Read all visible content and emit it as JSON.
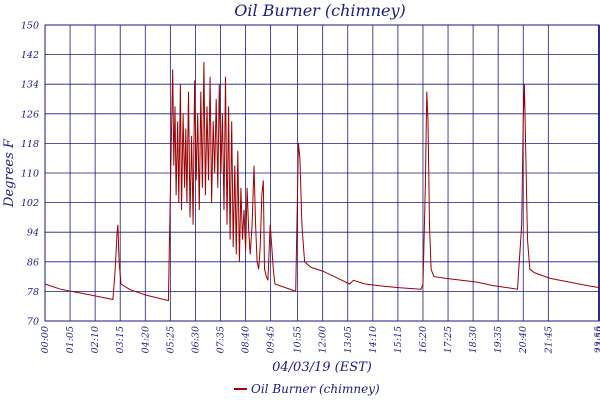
{
  "chart_data": {
    "type": "line",
    "title": "Oil Burner (chimney)",
    "xlabel": "04/03/19 (EST)",
    "ylabel": "Degrees F",
    "ylim": [
      70,
      150
    ],
    "yticks": [
      70,
      78,
      86,
      94,
      102,
      110,
      118,
      126,
      134,
      142,
      150
    ],
    "xlim_minutes": [
      0,
      1439
    ],
    "xticks": [
      "00:00",
      "01:05",
      "02:10",
      "03:15",
      "04:20",
      "05:25",
      "06:30",
      "07:35",
      "08:40",
      "09:45",
      "10:55",
      "12:00",
      "13:05",
      "14:10",
      "15:15",
      "16:20",
      "17:25",
      "18:30",
      "19:35",
      "20:40",
      "21:45",
      "23:55",
      "23:59"
    ],
    "xtick_minutes": [
      0,
      65,
      130,
      195,
      260,
      325,
      390,
      455,
      520,
      585,
      655,
      720,
      785,
      850,
      915,
      980,
      1045,
      1110,
      1175,
      1240,
      1305,
      1435,
      1439
    ],
    "grid": true,
    "legend_position": "bottom-center",
    "colors": {
      "series": "#a00000",
      "grid": "#1a1a80",
      "text": "#1a1a80"
    },
    "series": [
      {
        "name": "Oil Burner (chimney)",
        "points": [
          [
            0,
            80
          ],
          [
            40,
            78.6
          ],
          [
            80,
            77.8
          ],
          [
            120,
            77
          ],
          [
            176,
            75.8
          ],
          [
            182,
            84
          ],
          [
            187,
            94
          ],
          [
            189,
            96
          ],
          [
            192,
            86
          ],
          [
            197,
            80
          ],
          [
            220,
            78.5
          ],
          [
            262,
            77
          ],
          [
            320,
            75.5
          ],
          [
            326,
            110
          ],
          [
            331,
            138
          ],
          [
            334,
            112
          ],
          [
            337,
            128
          ],
          [
            340,
            104
          ],
          [
            344,
            124
          ],
          [
            347,
            102
          ],
          [
            351,
            134
          ],
          [
            354,
            100
          ],
          [
            358,
            126
          ],
          [
            362,
            106
          ],
          [
            365,
            122
          ],
          [
            368,
            102
          ],
          [
            372,
            132
          ],
          [
            376,
            98
          ],
          [
            380,
            120
          ],
          [
            384,
            96
          ],
          [
            388,
            135
          ],
          [
            392,
            108
          ],
          [
            396,
            126
          ],
          [
            400,
            100
          ],
          [
            404,
            132
          ],
          [
            408,
            106
          ],
          [
            412,
            140
          ],
          [
            416,
            104
          ],
          [
            420,
            128
          ],
          [
            424,
            108
          ],
          [
            428,
            136
          ],
          [
            432,
            102
          ],
          [
            436,
            124
          ],
          [
            440,
            110
          ],
          [
            444,
            130
          ],
          [
            448,
            106
          ],
          [
            452,
            134
          ],
          [
            456,
            110
          ],
          [
            460,
            126
          ],
          [
            464,
            100
          ],
          [
            468,
            136
          ],
          [
            472,
            96
          ],
          [
            476,
            128
          ],
          [
            480,
            92
          ],
          [
            484,
            124
          ],
          [
            488,
            90
          ],
          [
            492,
            112
          ],
          [
            496,
            88
          ],
          [
            500,
            116
          ],
          [
            504,
            86
          ],
          [
            508,
            106
          ],
          [
            512,
            92
          ],
          [
            516,
            100
          ],
          [
            520,
            89
          ],
          [
            524,
            106
          ],
          [
            528,
            95
          ],
          [
            532,
            88
          ],
          [
            537,
            96
          ],
          [
            542,
            112
          ],
          [
            546,
            96
          ],
          [
            550,
            86
          ],
          [
            554,
            84
          ],
          [
            558,
            90
          ],
          [
            562,
            104
          ],
          [
            566,
            108
          ],
          [
            569,
            84
          ],
          [
            574,
            82
          ],
          [
            578,
            81
          ],
          [
            584,
            96
          ],
          [
            588,
            90
          ],
          [
            592,
            84
          ],
          [
            596,
            80
          ],
          [
            640,
            78.4
          ],
          [
            650,
            78
          ],
          [
            657,
            118
          ],
          [
            661,
            114
          ],
          [
            666,
            96
          ],
          [
            673,
            86
          ],
          [
            690,
            84.5
          ],
          [
            720,
            83.5
          ],
          [
            760,
            81.5
          ],
          [
            790,
            80
          ],
          [
            800,
            81
          ],
          [
            830,
            80
          ],
          [
            870,
            79.5
          ],
          [
            920,
            79
          ],
          [
            975,
            78.6
          ],
          [
            980,
            80
          ],
          [
            986,
            106
          ],
          [
            990,
            132
          ],
          [
            993,
            124
          ],
          [
            997,
            96
          ],
          [
            1001,
            84
          ],
          [
            1008,
            82
          ],
          [
            1040,
            81.5
          ],
          [
            1080,
            81
          ],
          [
            1120,
            80.5
          ],
          [
            1160,
            79.6
          ],
          [
            1200,
            79
          ],
          [
            1225,
            78.6
          ],
          [
            1236,
            96
          ],
          [
            1240,
            124
          ],
          [
            1243,
            134
          ],
          [
            1246,
            118
          ],
          [
            1251,
            92
          ],
          [
            1257,
            84
          ],
          [
            1270,
            83
          ],
          [
            1310,
            81.5
          ],
          [
            1360,
            80.5
          ],
          [
            1410,
            79.5
          ],
          [
            1439,
            79
          ]
        ]
      }
    ]
  }
}
